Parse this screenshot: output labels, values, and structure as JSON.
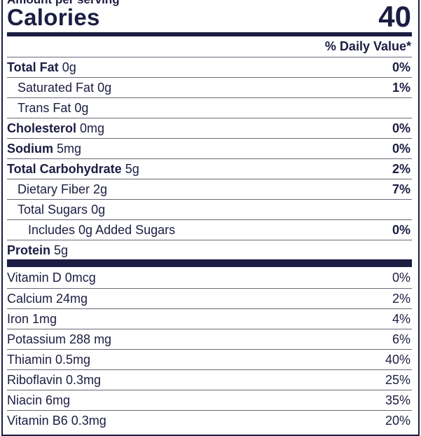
{
  "header": {
    "amount_per_serving": "Amount per serving",
    "calories_label": "Calories",
    "calories_value": "40",
    "daily_value_header": "% Daily Value*"
  },
  "nutrients": [
    {
      "name": "Total Fat",
      "amount": "0g",
      "dv": "0%"
    },
    {
      "name": "Saturated Fat",
      "amount": "0g",
      "dv": "1%"
    },
    {
      "name": "Trans Fat",
      "amount": "0g",
      "dv": ""
    },
    {
      "name": "Cholesterol",
      "amount": "0mg",
      "dv": "0%"
    },
    {
      "name": "Sodium",
      "amount": "5mg",
      "dv": "0%"
    },
    {
      "name": "Total Carbohydrate",
      "amount": "5g",
      "dv": "2%"
    },
    {
      "name": "Dietary Fiber",
      "amount": "2g",
      "dv": "7%"
    },
    {
      "name": "Total Sugars",
      "amount": "0g",
      "dv": ""
    },
    {
      "name": "Includes 0g Added Sugars",
      "amount": "",
      "dv": "0%"
    },
    {
      "name": "Protein",
      "amount": "5g",
      "dv": ""
    }
  ],
  "vitamins": [
    {
      "label": "Vitamin D 0mcg",
      "dv": "0%"
    },
    {
      "label": "Calcium 24mg",
      "dv": "2%"
    },
    {
      "label": "Iron 1mg",
      "dv": "4%"
    },
    {
      "label": "Potassium 288 mg",
      "dv": "6%"
    },
    {
      "label": "Thiamin 0.5mg",
      "dv": "40%"
    },
    {
      "label": "Riboflavin 0.3mg",
      "dv": "25%"
    },
    {
      "label": "Niacin 6mg",
      "dv": "35%"
    },
    {
      "label": "Vitamin B6 0.3mg",
      "dv": "20%"
    }
  ]
}
